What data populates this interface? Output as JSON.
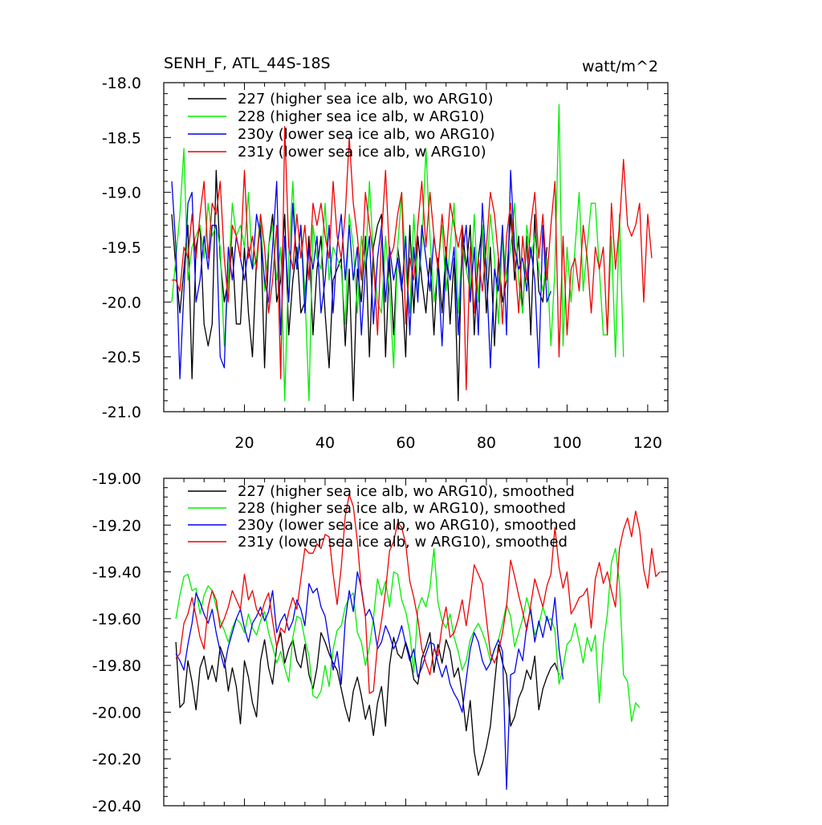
{
  "colors": {
    "227": "#000000",
    "228": "#00ee00",
    "230y": "#0000ee",
    "231y": "#ee0000"
  },
  "chart_data": [
    {
      "type": "line",
      "title": "SENH_F, ATL_44S-18S",
      "units": "watt/m^2",
      "xlabel": "",
      "ylabel": "",
      "xlim": [
        0,
        125
      ],
      "ylim": [
        -21.0,
        -18.0
      ],
      "xticks": [
        20,
        40,
        60,
        80,
        100,
        120
      ],
      "xtick_labels": [
        "20",
        "40",
        "60",
        "80",
        "100",
        "120"
      ],
      "yticks": [
        -18.0,
        -18.5,
        -19.0,
        -19.5,
        -20.0,
        -20.5,
        -21.0
      ],
      "ytick_labels": [
        "-18.0",
        "-18.5",
        "-19.0",
        "-19.5",
        "-20.0",
        "-20.5",
        "-21.0"
      ],
      "legend_position": "top-left",
      "series": [
        {
          "name": "227 (higher sea ice alb, wo ARG10)",
          "key": "227",
          "x_start": 2,
          "values": [
            -19.2,
            -19.7,
            -20.1,
            -19.7,
            -19.3,
            -20.7,
            -19.5,
            -19.3,
            -20.2,
            -20.4,
            -20.2,
            -18.8,
            -19.6,
            -20.0,
            -19.8,
            -19.5,
            -20.2,
            -20.2,
            -19.5,
            -20.1,
            -20.5,
            -19.6,
            -19.3,
            -20.6,
            -19.5,
            -19.2,
            -20.0,
            -19.8,
            -19.2,
            -20.3,
            -19.8,
            -19.5,
            -20.1,
            -20.0,
            -19.4,
            -20.3,
            -19.7,
            -19.4,
            -20.1,
            -20.6,
            -19.8,
            -19.7,
            -19.6,
            -20.4,
            -19.7,
            -20.9,
            -19.7,
            -20.0,
            -19.4,
            -20.5,
            -19.5,
            -19.3,
            -19.2,
            -20.5,
            -19.6,
            -20.3,
            -19.5,
            -19.8,
            -20.5,
            -19.3,
            -20.1,
            -19.4,
            -19.8,
            -20.1,
            -19.6,
            -20.3,
            -19.6,
            -20.1,
            -19.5,
            -20.2,
            -19.6,
            -20.9,
            -19.3,
            -19.7,
            -19.3,
            -20.3,
            -19.6,
            -19.3,
            -20.1,
            -19.5,
            -20.4,
            -19.6,
            -20.0,
            -19.8,
            -19.2,
            -19.8,
            -19.4,
            -20.1,
            -19.4,
            -20.3,
            -19.2,
            -19.9,
            -20.0,
            -19.5
          ]
        },
        {
          "name": "228 (higher sea ice alb, w ARG10)",
          "key": "228",
          "x_start": 2,
          "values": [
            -20.0,
            -19.6,
            -19.2,
            -18.6,
            -19.8,
            -19.5,
            -19.4,
            -19.3,
            -19.6,
            -19.1,
            -19.4,
            -19.3,
            -19.5,
            -20.4,
            -19.8,
            -19.1,
            -19.4,
            -19.3,
            -19.5,
            -19.0,
            -19.7,
            -19.6,
            -19.2,
            -19.9,
            -19.5,
            -19.3,
            -19.8,
            -19.5,
            -20.9,
            -19.6,
            -18.9,
            -19.7,
            -19.3,
            -19.9,
            -20.9,
            -19.3,
            -19.6,
            -19.7,
            -19.1,
            -19.8,
            -19.5,
            -19.6,
            -19.7,
            -20.2,
            -19.2,
            -19.5,
            -20.1,
            -19.4,
            -19.7,
            -18.9,
            -19.6,
            -20.0,
            -20.1,
            -19.4,
            -19.9,
            -20.6,
            -19.5,
            -19.0,
            -19.7,
            -20.1,
            -19.2,
            -19.9,
            -19.5,
            -18.6,
            -19.4,
            -20.0,
            -19.7,
            -19.3,
            -19.9,
            -19.5,
            -19.1,
            -20.1,
            -19.5,
            -19.7,
            -19.9,
            -19.2,
            -20.0,
            -19.3,
            -19.8,
            -19.2,
            -19.6,
            -20.2,
            -19.4,
            -19.8,
            -19.5,
            -19.1,
            -19.8,
            -20.1,
            -19.3,
            -19.6,
            -19.4,
            -19.7,
            -19.9,
            -19.6,
            -20.4,
            -19.7,
            -18.2,
            -20.4,
            -19.5,
            -20.0,
            -19.5,
            -19.0,
            -19.9,
            -19.5,
            -19.1,
            -19.1,
            -19.7,
            -20.3,
            -20.3,
            -19.4,
            -20.5,
            -19.2,
            -20.5
          ]
        },
        {
          "name": "230y (lower sea ice alb, wo ARG10)",
          "key": "230y",
          "x_start": 2,
          "values": [
            -18.9,
            -19.5,
            -20.7,
            -19.9,
            -19.1,
            -19.0,
            -20.0,
            -19.8,
            -19.4,
            -19.7,
            -19.3,
            -19.3,
            -20.5,
            -20.6,
            -19.5,
            -19.8,
            -19.4,
            -19.6,
            -19.8,
            -19.5,
            -19.7,
            -19.2,
            -19.4,
            -19.8,
            -20.0,
            -19.5,
            -18.9,
            -20.3,
            -19.4,
            -20.0,
            -19.1,
            -19.7,
            -19.3,
            -20.1,
            -19.5,
            -19.7,
            -19.4,
            -20.1,
            -19.8,
            -19.3,
            -20.1,
            -19.5,
            -19.2,
            -19.8,
            -19.3,
            -19.8,
            -19.5,
            -20.3,
            -19.7,
            -19.4,
            -20.2,
            -19.6,
            -19.3,
            -20.0,
            -19.5,
            -19.8,
            -19.6,
            -19.9,
            -19.4,
            -20.3,
            -19.5,
            -20.0,
            -19.3,
            -19.6,
            -19.9,
            -19.4,
            -19.7,
            -20.4,
            -19.6,
            -19.8,
            -19.5,
            -20.3,
            -19.6,
            -19.3,
            -20.0,
            -19.5,
            -20.3,
            -19.1,
            -19.7,
            -20.6,
            -19.7,
            -19.9,
            -19.3,
            -20.3,
            -18.8,
            -19.5,
            -19.7,
            -19.6,
            -19.9,
            -19.5,
            -19.8,
            -20.6,
            -19.3,
            -20.0,
            -19.9
          ]
        },
        {
          "name": "231y (lower sea ice alb, w ARG10)",
          "key": "231y",
          "x_start": 2,
          "values": [
            -19.8,
            -19.8,
            -19.9,
            -19.5,
            -19.6,
            -19.2,
            -19.6,
            -19.2,
            -18.9,
            -19.6,
            -19.1,
            -19.2,
            -18.9,
            -19.6,
            -20.0,
            -19.3,
            -19.4,
            -19.6,
            -18.8,
            -19.6,
            -19.4,
            -19.7,
            -19.2,
            -19.5,
            -20.1,
            -19.8,
            -19.3,
            -20.7,
            -18.4,
            -19.5,
            -19.7,
            -19.2,
            -19.6,
            -19.3,
            -19.8,
            -19.1,
            -19.3,
            -19.1,
            -19.4,
            -19.6,
            -18.9,
            -19.4,
            -19.6,
            -19.2,
            -18.5,
            -19.1,
            -19.4,
            -19.8,
            -19.0,
            -19.3,
            -19.6,
            -20.3,
            -19.4,
            -18.8,
            -19.6,
            -19.5,
            -19.2,
            -19.0,
            -20.2,
            -19.6,
            -19.8,
            -19.3,
            -18.9,
            -19.5,
            -19.0,
            -19.4,
            -19.7,
            -19.2,
            -19.6,
            -19.1,
            -19.3,
            -19.5,
            -19.3,
            -20.8,
            -19.5,
            -20.1,
            -19.6,
            -19.9,
            -19.5,
            -19.0,
            -19.2,
            -19.6,
            -20.2,
            -19.4,
            -19.1,
            -19.6,
            -20.1,
            -19.4,
            -19.8,
            -19.3,
            -19.0,
            -19.6,
            -19.2,
            -19.8,
            -19.3,
            -18.9,
            -20.5,
            -19.4,
            -20.3,
            -19.7,
            -19.6,
            -19.9,
            -19.3,
            -19.6,
            -20.1,
            -19.5,
            -19.7,
            -19.5,
            -20.3,
            -19.1,
            -19.7,
            -19.3,
            -18.7,
            -19.3,
            -19.4,
            -19.3,
            -19.1,
            -20.0,
            -19.2,
            -19.6
          ]
        }
      ]
    },
    {
      "type": "line",
      "title": "",
      "units": "",
      "xlabel": "",
      "ylabel": "",
      "xlim": [
        0,
        125
      ],
      "ylim": [
        -20.4,
        -19.0
      ],
      "xticks": [
        20,
        40,
        60,
        80,
        100,
        120
      ],
      "xtick_labels": [],
      "yticks": [
        -19.0,
        -19.2,
        -19.4,
        -19.6,
        -19.8,
        -20.0,
        -20.2,
        -20.4
      ],
      "ytick_labels": [
        "-19.00",
        "-19.20",
        "-19.40",
        "-19.60",
        "-19.80",
        "-20.00",
        "-20.20",
        "-20.40"
      ],
      "legend_position": "top-left",
      "series": [
        {
          "name": "227 (higher sea ice alb, wo ARG10), smoothed",
          "key": "227",
          "x_start": 3,
          "values": [
            -19.7,
            -19.98,
            -19.96,
            -19.78,
            -19.87,
            -19.99,
            -19.81,
            -19.76,
            -19.86,
            -19.8,
            -19.87,
            -19.72,
            -19.77,
            -19.91,
            -19.81,
            -19.89,
            -20.05,
            -19.78,
            -19.85,
            -19.96,
            -20.02,
            -19.78,
            -19.69,
            -19.81,
            -19.88,
            -19.72,
            -19.66,
            -19.79,
            -19.73,
            -19.69,
            -19.78,
            -19.81,
            -19.71,
            -19.84,
            -19.9,
            -19.81,
            -19.66,
            -19.7,
            -19.75,
            -19.79,
            -19.82,
            -19.9,
            -19.98,
            -20.04,
            -19.91,
            -19.85,
            -19.93,
            -20.03,
            -19.97,
            -20.1,
            -19.96,
            -19.89,
            -20.06,
            -19.8,
            -19.68,
            -19.75,
            -19.77,
            -19.7,
            -19.76,
            -19.86,
            -19.88,
            -19.77,
            -19.72,
            -19.66,
            -19.83,
            -19.71,
            -19.79,
            -19.69,
            -19.74,
            -19.85,
            -19.81,
            -19.92,
            -20.08,
            -19.95,
            -20.17,
            -20.27,
            -20.22,
            -20.15,
            -20.06,
            -19.88,
            -19.71,
            -19.79,
            -19.84,
            -20.06,
            -20.02,
            -19.94,
            -19.9,
            -19.82,
            -19.86,
            -19.76,
            -19.99,
            -19.9,
            -19.85,
            -19.81,
            -19.79,
            -19.84
          ]
        },
        {
          "name": "228 (higher sea ice alb, w ARG10), smoothed",
          "key": "228",
          "x_start": 3,
          "values": [
            -19.6,
            -19.5,
            -19.42,
            -19.41,
            -19.48,
            -19.47,
            -19.58,
            -19.5,
            -19.46,
            -19.48,
            -19.55,
            -19.61,
            -19.65,
            -19.7,
            -19.64,
            -19.6,
            -19.62,
            -19.66,
            -19.58,
            -19.64,
            -19.67,
            -19.61,
            -19.57,
            -19.66,
            -19.72,
            -19.79,
            -19.74,
            -19.81,
            -19.87,
            -19.68,
            -19.59,
            -19.6,
            -19.69,
            -19.76,
            -19.93,
            -19.94,
            -19.91,
            -19.8,
            -19.89,
            -19.73,
            -19.65,
            -19.63,
            -19.55,
            -19.51,
            -19.49,
            -19.66,
            -19.7,
            -19.8,
            -19.72,
            -19.6,
            -19.43,
            -19.5,
            -19.44,
            -19.55,
            -19.4,
            -19.41,
            -19.52,
            -19.57,
            -19.66,
            -19.83,
            -19.56,
            -19.51,
            -19.55,
            -19.47,
            -19.3,
            -19.53,
            -19.61,
            -19.64,
            -19.58,
            -19.68,
            -19.74,
            -19.82,
            -19.78,
            -19.69,
            -19.65,
            -19.62,
            -19.66,
            -19.71,
            -19.78,
            -19.73,
            -19.69,
            -19.62,
            -19.54,
            -19.59,
            -19.72,
            -19.66,
            -19.6,
            -19.51,
            -19.58,
            -19.67,
            -19.63,
            -19.55,
            -19.61,
            -19.6,
            -19.65,
            -19.88,
            -19.81,
            -19.71,
            -19.69,
            -19.62,
            -19.7,
            -19.79,
            -19.68,
            -19.74,
            -19.67,
            -19.96,
            -19.71,
            -19.58,
            -19.36,
            -19.3,
            -19.45,
            -19.84,
            -19.87,
            -20.04,
            -19.96,
            -19.98
          ]
        },
        {
          "name": "230y (lower sea ice alb, wo ARG10), smoothed",
          "key": "230y",
          "x_start": 3,
          "values": [
            -19.75,
            -19.78,
            -19.82,
            -19.71,
            -19.62,
            -19.49,
            -19.53,
            -19.58,
            -19.62,
            -19.56,
            -19.66,
            -19.74,
            -19.81,
            -19.72,
            -19.66,
            -19.6,
            -19.56,
            -19.64,
            -19.7,
            -19.62,
            -19.59,
            -19.55,
            -19.61,
            -19.57,
            -19.48,
            -19.66,
            -19.61,
            -19.58,
            -19.65,
            -19.61,
            -19.52,
            -19.56,
            -19.63,
            -19.45,
            -19.49,
            -19.47,
            -19.55,
            -19.59,
            -19.7,
            -19.82,
            -19.74,
            -19.88,
            -19.61,
            -19.48,
            -19.57,
            -19.4,
            -19.47,
            -19.59,
            -19.56,
            -19.61,
            -19.73,
            -19.7,
            -19.63,
            -19.67,
            -19.73,
            -19.69,
            -19.63,
            -19.71,
            -19.78,
            -19.73,
            -19.85,
            -19.81,
            -19.75,
            -19.7,
            -19.71,
            -19.79,
            -19.85,
            -19.8,
            -19.88,
            -19.92,
            -19.95,
            -20.0,
            -19.86,
            -19.73,
            -19.66,
            -19.7,
            -19.78,
            -19.82,
            -19.79,
            -19.73,
            -19.69,
            -19.74,
            -20.33,
            -19.84,
            -19.83,
            -19.73,
            -19.78,
            -19.63,
            -19.56,
            -19.7,
            -19.61,
            -19.68,
            -19.59,
            -19.65,
            -19.51,
            -19.73,
            -19.86
          ]
        },
        {
          "name": "231y (lower sea ice alb, w ARG10), smoothed",
          "key": "231y",
          "x_start": 3,
          "values": [
            -19.77,
            -19.75,
            -19.62,
            -19.58,
            -19.51,
            -19.59,
            -19.68,
            -19.73,
            -19.55,
            -19.48,
            -19.52,
            -19.64,
            -19.6,
            -19.55,
            -19.48,
            -19.52,
            -19.56,
            -19.41,
            -19.52,
            -19.48,
            -19.56,
            -19.59,
            -19.53,
            -19.49,
            -19.61,
            -19.72,
            -19.64,
            -19.66,
            -19.57,
            -19.51,
            -19.56,
            -19.43,
            -19.3,
            -19.32,
            -19.32,
            -19.28,
            -19.3,
            -19.24,
            -19.25,
            -19.41,
            -19.54,
            -19.38,
            -19.16,
            -19.07,
            -19.12,
            -19.27,
            -19.48,
            -19.59,
            -19.92,
            -19.91,
            -19.71,
            -19.61,
            -19.48,
            -19.31,
            -19.27,
            -19.19,
            -19.21,
            -19.28,
            -19.44,
            -19.51,
            -19.6,
            -19.73,
            -19.79,
            -19.84,
            -19.73,
            -19.76,
            -19.63,
            -19.55,
            -19.68,
            -19.66,
            -19.6,
            -19.52,
            -19.63,
            -19.51,
            -19.37,
            -19.41,
            -19.45,
            -19.6,
            -19.75,
            -19.79,
            -19.74,
            -19.66,
            -19.55,
            -19.35,
            -19.42,
            -19.5,
            -19.57,
            -19.65,
            -19.54,
            -19.43,
            -19.49,
            -19.55,
            -19.46,
            -19.41,
            -19.21,
            -19.38,
            -19.47,
            -19.4,
            -19.58,
            -19.55,
            -19.51,
            -19.5,
            -19.47,
            -19.64,
            -19.43,
            -19.36,
            -19.45,
            -19.4,
            -19.48,
            -19.55,
            -19.3,
            -19.22,
            -19.17,
            -19.25,
            -19.14,
            -19.22,
            -19.39,
            -19.47,
            -19.3,
            -19.42,
            -19.4
          ]
        }
      ]
    }
  ]
}
